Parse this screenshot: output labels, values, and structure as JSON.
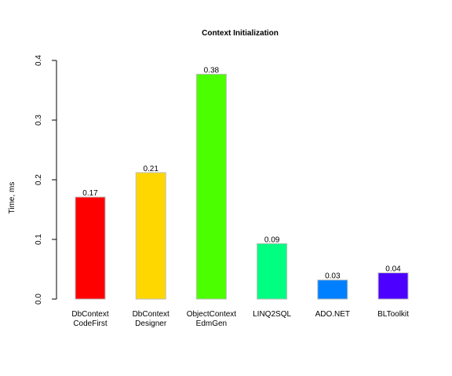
{
  "chart_data": {
    "type": "bar",
    "title": "Context Initialization",
    "xlabel": "",
    "ylabel": "Time, ms",
    "ylim": [
      0,
      0.4
    ],
    "yticks": [
      "0.0",
      "0.1",
      "0.2",
      "0.3",
      "0.4"
    ],
    "grid": false,
    "legend": "none",
    "categories": [
      [
        "DbContext",
        "CodeFirst"
      ],
      [
        "DbContext",
        "Designer"
      ],
      [
        "ObjectContext",
        "EdmGen"
      ],
      [
        "LINQ2SQL"
      ],
      [
        "ADO.NET"
      ],
      [
        "BLToolkit"
      ]
    ],
    "values": [
      0.171,
      0.212,
      0.377,
      0.093,
      0.032,
      0.044
    ],
    "value_labels": [
      "0.17",
      "0.21",
      "0.38",
      "0.09",
      "0.03",
      "0.04"
    ],
    "colors": [
      "#ff0000",
      "#ffd700",
      "#4cff00",
      "#00ff80",
      "#0080ff",
      "#4c00ff"
    ]
  }
}
